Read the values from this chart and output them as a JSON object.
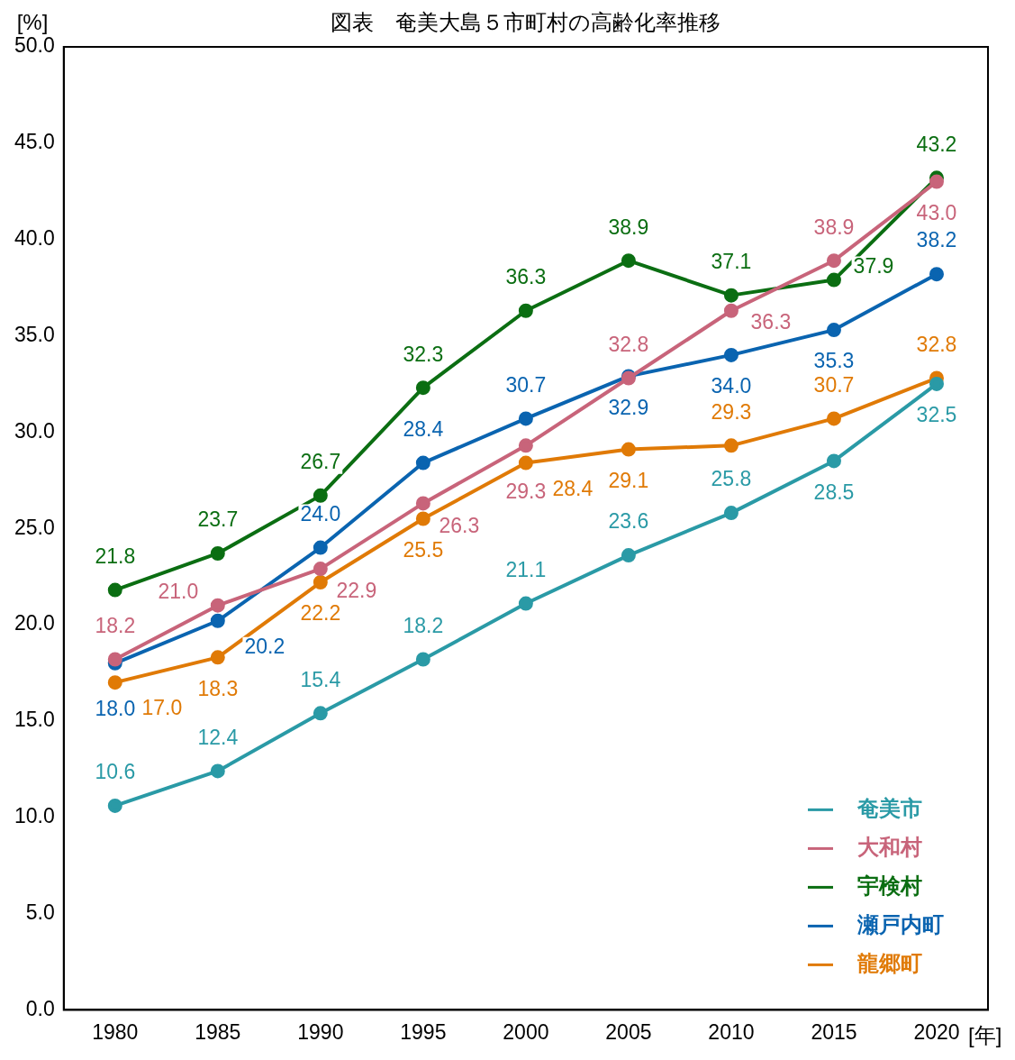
{
  "chart_data": {
    "type": "line",
    "title": "図表　奄美大島５市町村の高齢化率推移",
    "ylabel": "[%]",
    "xlabel": "[年]",
    "categories": [
      "1980",
      "1985",
      "1990",
      "1995",
      "2000",
      "2005",
      "2010",
      "2015",
      "2020"
    ],
    "series": [
      {
        "name": "奄美市",
        "color": "#2a9aa6",
        "values": [
          10.6,
          12.4,
          15.4,
          18.2,
          21.1,
          23.6,
          25.8,
          28.5,
          32.5
        ],
        "value_labels": [
          "10.6",
          "12.4",
          "15.4",
          "18.2",
          "21.1",
          "23.6",
          "25.8",
          "28.5",
          "32.5"
        ]
      },
      {
        "name": "大和村",
        "color": "#c8647a",
        "values": [
          18.2,
          21.0,
          22.9,
          26.3,
          29.3,
          32.8,
          36.3,
          38.9,
          43.0
        ],
        "value_labels": [
          "18.2",
          "21.0",
          "22.9",
          "26.3",
          "29.3",
          "32.8",
          "36.3",
          "38.9",
          "43.0"
        ]
      },
      {
        "name": "宇検村",
        "color": "#0b6e12",
        "values": [
          21.8,
          23.7,
          26.7,
          32.3,
          36.3,
          38.9,
          37.1,
          37.9,
          43.2
        ],
        "value_labels": [
          "21.8",
          "23.7",
          "26.7",
          "32.3",
          "36.3",
          "38.9",
          "37.1",
          "37.9",
          "43.2"
        ]
      },
      {
        "name": "瀬戸内町",
        "color": "#0a64b0",
        "values": [
          18.0,
          20.2,
          24.0,
          28.4,
          30.7,
          32.9,
          34.0,
          35.3,
          38.2
        ],
        "value_labels": [
          "18.0",
          "20.2",
          "24.0",
          "28.4",
          "30.7",
          "32.9",
          "34.0",
          "35.3",
          "38.2"
        ]
      },
      {
        "name": "龍郷町",
        "color": "#e07a06",
        "values": [
          17.0,
          18.3,
          22.2,
          25.5,
          28.4,
          29.1,
          29.3,
          30.7,
          32.8
        ],
        "value_labels": [
          "17.0",
          "18.3",
          "22.2",
          "25.5",
          "28.4",
          "29.1",
          "29.3",
          "30.7",
          "32.8"
        ]
      }
    ],
    "ylim": [
      0,
      50
    ],
    "yticks": [
      {
        "value": 0,
        "label": "0.0"
      },
      {
        "value": 5,
        "label": "5.0"
      },
      {
        "value": 10,
        "label": "10.0"
      },
      {
        "value": 15,
        "label": "15.0"
      },
      {
        "value": 20,
        "label": "20.0"
      },
      {
        "value": 25,
        "label": "25.0"
      },
      {
        "value": 30,
        "label": "30.0"
      },
      {
        "value": 35,
        "label": "35.0"
      },
      {
        "value": 40,
        "label": "40.0"
      },
      {
        "value": 45,
        "label": "45.0"
      },
      {
        "value": 50,
        "label": "50.0"
      }
    ],
    "grid": false,
    "legend": "bottom right",
    "marker": "circle",
    "line_style": "solid"
  }
}
